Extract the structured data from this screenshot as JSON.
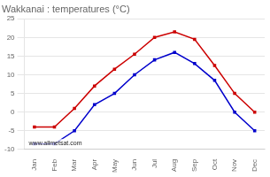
{
  "chart_data": {
    "type": "line",
    "title": "Wakkanai : temperatures (°C)",
    "categories": [
      "Jan",
      "Feb",
      "Mar",
      "Apr",
      "May",
      "Jun",
      "Jul",
      "Aug",
      "Sep",
      "Oct",
      "Nov",
      "Dec"
    ],
    "series": [
      {
        "color": "#cc0000",
        "marker": "square",
        "values": [
          -4,
          -4,
          1,
          7,
          11.5,
          15.5,
          20,
          21.5,
          19.5,
          12.5,
          5,
          0
        ]
      },
      {
        "color": "#0000cc",
        "marker": "square",
        "values": [
          -8.5,
          -8.5,
          -5,
          2,
          5,
          10,
          14,
          16,
          13,
          8.5,
          0,
          -5
        ]
      }
    ],
    "ylim": [
      -10,
      25
    ],
    "yticks": [
      -10,
      -5,
      0,
      5,
      10,
      15,
      20,
      25
    ],
    "grid": true,
    "annotations": [
      "www.allmetsat.com"
    ]
  }
}
